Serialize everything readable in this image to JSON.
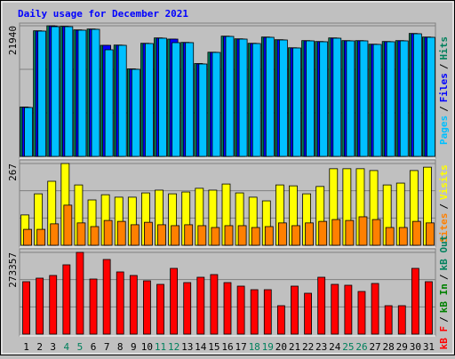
{
  "title": "Daily usage for December 2021",
  "separator": "/",
  "chart_data": [
    {
      "type": "bar",
      "ylim": [
        0,
        21940
      ],
      "yticks": [
        21940
      ],
      "grid": true,
      "series": [
        {
          "name": "Hits",
          "color": "#00805c",
          "values": [
            8300,
            21100,
            21940,
            21850,
            21250,
            21400,
            18656,
            18700,
            14700,
            19000,
            19900,
            19701,
            19150,
            15600,
            17500,
            20200,
            19750,
            19000,
            20050,
            19600,
            18250,
            19450,
            19300,
            19900,
            19450,
            19450,
            18850,
            19300,
            19450,
            20650,
            20050
          ]
        },
        {
          "name": "Files",
          "color": "#0000ff",
          "values": [
            8250,
            21060,
            21900,
            21800,
            21210,
            21360,
            18656,
            18670,
            14650,
            18970,
            19870,
            19701,
            19120,
            15540,
            17480,
            20160,
            19710,
            18970,
            20010,
            19570,
            18220,
            19420,
            19270,
            19870,
            19420,
            19420,
            18820,
            19270,
            19420,
            20610,
            20010
          ]
        },
        {
          "name": "Pages",
          "color": "#00c0ff",
          "values": [
            8209,
            21044,
            21790,
            21790,
            21194,
            21343,
            17910,
            18656,
            14627,
            18955,
            19850,
            19104,
            19104,
            15522,
            17462,
            20149,
            19701,
            18955,
            20000,
            19552,
            18209,
            19403,
            19254,
            19850,
            19403,
            19403,
            18806,
            19254,
            19403,
            20597,
            20000
          ]
        }
      ]
    },
    {
      "type": "bar",
      "ylim": [
        0,
        267
      ],
      "yticks": [
        267
      ],
      "grid": true,
      "series": [
        {
          "name": "Visits",
          "color": "#ffff00",
          "values": [
            99,
            168,
            209,
            267,
            197,
            148,
            165,
            157,
            157,
            171,
            180,
            168,
            174,
            186,
            180,
            200,
            171,
            157,
            145,
            197,
            194,
            168,
            192,
            250,
            250,
            250,
            244,
            197,
            203,
            244,
            255
          ]
        },
        {
          "name": "Sites",
          "color": "#ff8000",
          "values": [
            52,
            52,
            70,
            131,
            73,
            61,
            81,
            78,
            67,
            75,
            67,
            64,
            67,
            64,
            58,
            64,
            64,
            58,
            61,
            73,
            64,
            73,
            78,
            84,
            81,
            93,
            84,
            58,
            58,
            78,
            73
          ]
        }
      ]
    },
    {
      "type": "bar",
      "ylim": [
        0,
        273357
      ],
      "yticks": [
        273357
      ],
      "grid": true,
      "categories": [
        "1",
        "2",
        "3",
        "4",
        "5",
        "6",
        "7",
        "8",
        "9",
        "10",
        "11",
        "12",
        "13",
        "14",
        "15",
        "16",
        "17",
        "18",
        "19",
        "20",
        "21",
        "22",
        "23",
        "24",
        "25",
        "26",
        "27",
        "28",
        "29",
        "30",
        "31"
      ],
      "category_colors": [
        "#000000",
        "#000000",
        "#000000",
        "#00805c",
        "#00805c",
        "#000000",
        "#000000",
        "#000000",
        "#000000",
        "#000000",
        "#00805c",
        "#00805c",
        "#000000",
        "#000000",
        "#000000",
        "#000000",
        "#000000",
        "#00805c",
        "#00805c",
        "#000000",
        "#000000",
        "#000000",
        "#000000",
        "#000000",
        "#00805c",
        "#00805c",
        "#000000",
        "#000000",
        "#000000",
        "#000000",
        "#000000"
      ],
      "series": [
        {
          "name": "kB F",
          "color": "#ff0000",
          "values": [
            175307,
            187192,
            196106,
            231761,
            273357,
            184221,
            249589,
            207991,
            196106,
            178278,
            166393,
            219876,
            172335,
            190163,
            199077,
            172335,
            160450,
            148565,
            148565,
            95082,
            160450,
            136680,
            190163,
            166393,
            163422,
            142622,
            169364,
            95082,
            95082,
            219876,
            175307
          ]
        }
      ],
      "legend_extra": [
        {
          "name": "kB In",
          "color": "#008000"
        },
        {
          "name": "kB Out",
          "color": "#00805c"
        }
      ]
    }
  ]
}
